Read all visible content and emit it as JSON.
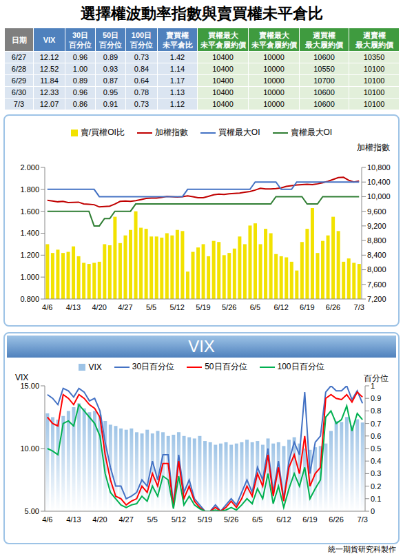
{
  "title": "選擇權波動率指數與賣買權未平倉比",
  "table": {
    "header": [
      [
        "日期"
      ],
      [
        "VIX"
      ],
      [
        "30日",
        "百分位"
      ],
      [
        "50日",
        "百分位"
      ],
      [
        "100日",
        "百分位"
      ],
      [
        "賣買權",
        "未平倉比"
      ],
      [
        "買權最大",
        "未平倉履約價"
      ],
      [
        "賣權最大",
        "未平倉履約價"
      ],
      [
        "週買權",
        "最大履約價"
      ],
      [
        "週賣權",
        "最大履約價"
      ]
    ],
    "rows": [
      [
        "6/27",
        "12.12",
        "0.96",
        "0.89",
        "0.73",
        "1.42",
        "10400",
        "10000",
        "10600",
        "10350"
      ],
      [
        "6/28",
        "12.52",
        "1.00",
        "0.93",
        "0.84",
        "1.14",
        "10400",
        "10000",
        "10550",
        "10100"
      ],
      [
        "6/29",
        "11.84",
        "0.89",
        "0.87",
        "0.64",
        "1.17",
        "10400",
        "10000",
        "10700",
        "10100"
      ],
      [
        "6/30",
        "12.33",
        "0.96",
        "0.95",
        "0.78",
        "1.13",
        "10400",
        "10000",
        "10600",
        "10100"
      ],
      [
        "7/3",
        "12.07",
        "0.86",
        "0.91",
        "0.73",
        "1.12",
        "10400",
        "10000",
        "10600",
        "10100"
      ]
    ]
  },
  "chart_data": [
    {
      "type": "combo",
      "legend": "top",
      "grid": false,
      "y2label": "加權指數",
      "categories": [
        "4/6",
        null,
        null,
        null,
        null,
        "4/13",
        null,
        null,
        null,
        null,
        "4/20",
        null,
        null,
        null,
        null,
        "4/27",
        null,
        null,
        null,
        null,
        "5/5",
        null,
        null,
        null,
        null,
        "5/12",
        null,
        null,
        null,
        null,
        "5/19",
        null,
        null,
        null,
        null,
        "5/26",
        null,
        null,
        null,
        null,
        "6/5",
        null,
        null,
        null,
        null,
        "6/12",
        null,
        null,
        null,
        null,
        "6/19",
        null,
        null,
        null,
        null,
        "6/26",
        null,
        null,
        null,
        null,
        "7/3"
      ],
      "ylim": [
        0.8,
        2.0
      ],
      "yticks": [
        {
          "value": 0.8,
          "label": "0.800"
        },
        {
          "value": 1.0,
          "label": "1.000"
        },
        {
          "value": 1.2,
          "label": "1.200"
        },
        {
          "value": 1.4,
          "label": "1.400"
        },
        {
          "value": 1.6,
          "label": "1.600"
        },
        {
          "value": 1.8,
          "label": "1.800"
        },
        {
          "value": 2.0,
          "label": "2.000"
        }
      ],
      "y2lim": [
        7200,
        10800
      ],
      "y2ticks": [
        {
          "value": 7200,
          "label": "7,200"
        },
        {
          "value": 7600,
          "label": "7,600"
        },
        {
          "value": 8000,
          "label": "8,000"
        },
        {
          "value": 8400,
          "label": "8,400"
        },
        {
          "value": 8800,
          "label": "8,800"
        },
        {
          "value": 9200,
          "label": "9,200"
        },
        {
          "value": 9600,
          "label": "9,600"
        },
        {
          "value": 10000,
          "label": "10,000"
        },
        {
          "value": 10400,
          "label": "10,400"
        },
        {
          "value": 10800,
          "label": "10,800"
        }
      ],
      "series": [
        {
          "name": "賣/買權OI比",
          "type": "bar",
          "color": "#f2e200",
          "values": [
            1.3,
            1.22,
            1.25,
            1.22,
            1.23,
            1.28,
            1.19,
            1.13,
            1.12,
            1.13,
            1.14,
            1.3,
            1.29,
            1.55,
            1.31,
            1.38,
            1.43,
            1.6,
            1.45,
            1.44,
            1.37,
            1.37,
            1.36,
            1.4,
            1.38,
            1.43,
            1.42,
            1.05,
            1.23,
            1.27,
            1.3,
            1.19,
            1.33,
            1.32,
            1.2,
            1.22,
            1.26,
            1.37,
            1.3,
            1.47,
            1.49,
            1.3,
            1.44,
            1.4,
            1.21,
            1.19,
            1.18,
            1.14,
            1.06,
            1.32,
            1.44,
            1.63,
            1.22,
            1.33,
            1.38,
            1.55,
            1.42,
            1.14,
            1.17,
            1.13,
            1.12
          ]
        },
        {
          "name": "加權指數",
          "type": "line",
          "axis": "y2",
          "color": "#c00000",
          "values": [
            9900,
            9880,
            9860,
            9870,
            9840,
            9845,
            9850,
            9800,
            9790,
            9780,
            9720,
            9730,
            9740,
            9800,
            9870,
            9880,
            9870,
            9890,
            9920,
            9950,
            9960,
            9960,
            9980,
            10010,
            10000,
            9990,
            10000,
            10020,
            10000,
            9970,
            9970,
            10010,
            10050,
            10070,
            10060,
            10080,
            10090,
            10100,
            10120,
            10140,
            10180,
            10230,
            10210,
            10210,
            10220,
            10240,
            10280,
            10300,
            10320,
            10330,
            10340,
            10330,
            10350,
            10380,
            10420,
            10470,
            10520,
            10530,
            10450,
            10400,
            10430
          ]
        },
        {
          "name": "買權最大OI",
          "type": "line",
          "axis": "y2",
          "color": "#4472c4",
          "values": [
            10200,
            10200,
            10200,
            10200,
            10200,
            10200,
            10200,
            10200,
            10200,
            10200,
            10000,
            10000,
            10000,
            10000,
            10000,
            10000,
            10000,
            10000,
            10000,
            10000,
            10000,
            10000,
            10000,
            10000,
            10000,
            10000,
            10000,
            10200,
            10200,
            10200,
            10200,
            10200,
            10200,
            10200,
            10200,
            10200,
            10200,
            10200,
            10200,
            10200,
            10400,
            10400,
            10400,
            10400,
            10400,
            10200,
            10200,
            10200,
            10400,
            10400,
            10400,
            10400,
            10400,
            10400,
            10400,
            10400,
            10400,
            10400,
            10400,
            10400,
            10400
          ]
        },
        {
          "name": "賣權最大OI",
          "type": "line",
          "axis": "y2",
          "color": "#2e7d32",
          "values": [
            9600,
            9600,
            9600,
            9600,
            9600,
            9600,
            9600,
            9600,
            9600,
            9200,
            9200,
            9400,
            9400,
            9600,
            9600,
            9600,
            9600,
            9800,
            9800,
            9800,
            9800,
            9800,
            9800,
            9800,
            9800,
            9800,
            9800,
            9800,
            9800,
            9800,
            9800,
            9800,
            9800,
            9800,
            9800,
            9800,
            9800,
            9800,
            9800,
            9800,
            9800,
            9800,
            9800,
            9800,
            10000,
            10000,
            10000,
            10000,
            10000,
            10000,
            9800,
            9800,
            9800,
            10000,
            10000,
            10000,
            10000,
            10000,
            10000,
            10000,
            10000
          ]
        }
      ]
    },
    {
      "type": "combo",
      "title": "VIX",
      "legend": "top",
      "grid": false,
      "ylabel": "VIX",
      "y2label": "百分位",
      "categories": [
        "4/6",
        null,
        null,
        null,
        null,
        "4/13",
        null,
        null,
        null,
        null,
        "4/20",
        null,
        null,
        null,
        null,
        "4/27",
        null,
        null,
        null,
        null,
        "5/5",
        null,
        null,
        null,
        null,
        "5/12",
        null,
        null,
        null,
        null,
        "5/19",
        null,
        null,
        null,
        null,
        "5/26",
        null,
        null,
        null,
        null,
        "6/5",
        null,
        null,
        null,
        null,
        "6/12",
        null,
        null,
        null,
        null,
        "6/19",
        null,
        null,
        null,
        null,
        "6/26",
        null,
        null,
        null,
        null,
        "7/3"
      ],
      "ylim": [
        5,
        15
      ],
      "yticks": [
        {
          "value": 5,
          "label": "5.00"
        },
        {
          "value": 10,
          "label": "10.00"
        },
        {
          "value": 15,
          "label": "15.00"
        }
      ],
      "y2lim": [
        0,
        1
      ],
      "y2ticks": [
        0,
        0.1,
        0.2,
        0.3,
        0.4,
        0.5,
        0.6,
        0.7,
        0.8,
        0.9,
        1
      ],
      "series": [
        {
          "name": "VIX",
          "type": "bar",
          "color": "#9dc3e6",
          "values": [
            12.8,
            12.5,
            12.3,
            12.6,
            13.0,
            13.3,
            13.6,
            13.2,
            12.9,
            13.0,
            12.7,
            12.2,
            11.9,
            11.8,
            11.6,
            11.5,
            11.6,
            11.3,
            11.2,
            11.5,
            11.2,
            11.4,
            11.3,
            11.0,
            11.1,
            11.3,
            11.0,
            10.9,
            10.8,
            11.0,
            10.6,
            10.5,
            10.3,
            10.4,
            10.5,
            10.3,
            10.4,
            10.5,
            10.7,
            10.5,
            10.6,
            10.3,
            10.8,
            10.4,
            10.5,
            10.2,
            10.7,
            10.9,
            10.4,
            10.0,
            9.9,
            10.1,
            10.2,
            10.4,
            11.4,
            12.2,
            12.12,
            12.52,
            11.84,
            12.33,
            12.07
          ]
        },
        {
          "name": "30日百分位",
          "type": "line",
          "axis": "y2",
          "color": "#4472c4",
          "values": [
            0.93,
            0.9,
            0.85,
            0.98,
            0.96,
            0.91,
            0.98,
            0.95,
            0.88,
            0.9,
            0.8,
            0.55,
            0.35,
            0.2,
            0.2,
            0.1,
            0.12,
            0.15,
            0.25,
            0.2,
            0.4,
            0.25,
            0.45,
            0.45,
            0.05,
            0.45,
            0.15,
            0.25,
            0.1,
            0.05,
            0.0,
            0.0,
            0.05,
            0.0,
            0.05,
            0.1,
            0.05,
            0.15,
            0.25,
            0.15,
            0.35,
            0.25,
            0.5,
            0.15,
            0.4,
            0.1,
            0.4,
            0.55,
            0.45,
            0.95,
            0.3,
            0.55,
            0.6,
            0.95,
            1.0,
            0.96,
            0.96,
            1.0,
            0.89,
            0.96,
            0.86
          ]
        },
        {
          "name": "50日百分位",
          "type": "line",
          "axis": "y2",
          "color": "#ff0000",
          "values": [
            0.75,
            0.7,
            0.68,
            0.93,
            0.9,
            0.85,
            0.93,
            0.9,
            0.85,
            0.82,
            0.75,
            0.45,
            0.25,
            0.12,
            0.1,
            0.05,
            0.08,
            0.1,
            0.2,
            0.15,
            0.3,
            0.2,
            0.38,
            0.38,
            0.03,
            0.4,
            0.1,
            0.2,
            0.08,
            0.03,
            0.0,
            0.0,
            0.03,
            0.0,
            0.03,
            0.08,
            0.03,
            0.1,
            0.2,
            0.12,
            0.3,
            0.2,
            0.45,
            0.12,
            0.35,
            0.08,
            0.35,
            0.45,
            0.3,
            0.6,
            0.2,
            0.3,
            0.35,
            0.9,
            0.93,
            0.9,
            0.89,
            0.93,
            0.87,
            0.95,
            0.91
          ]
        },
        {
          "name": "100日百分位",
          "type": "line",
          "axis": "y2",
          "color": "#00b050",
          "values": [
            0.5,
            0.48,
            0.45,
            0.7,
            0.72,
            0.68,
            0.85,
            0.8,
            0.75,
            0.7,
            0.6,
            0.3,
            0.15,
            0.1,
            0.05,
            0.03,
            0.05,
            0.06,
            0.12,
            0.08,
            0.2,
            0.12,
            0.28,
            0.25,
            0.02,
            0.28,
            0.05,
            0.12,
            0.05,
            0.02,
            0.0,
            0.0,
            0.01,
            0.0,
            0.01,
            0.03,
            0.01,
            0.05,
            0.1,
            0.06,
            0.18,
            0.1,
            0.3,
            0.06,
            0.2,
            0.03,
            0.18,
            0.3,
            0.2,
            0.35,
            0.1,
            0.18,
            0.25,
            0.75,
            0.8,
            0.7,
            0.73,
            0.84,
            0.64,
            0.78,
            0.73
          ]
        }
      ]
    }
  ],
  "footer": "統一期貨研究科製作"
}
